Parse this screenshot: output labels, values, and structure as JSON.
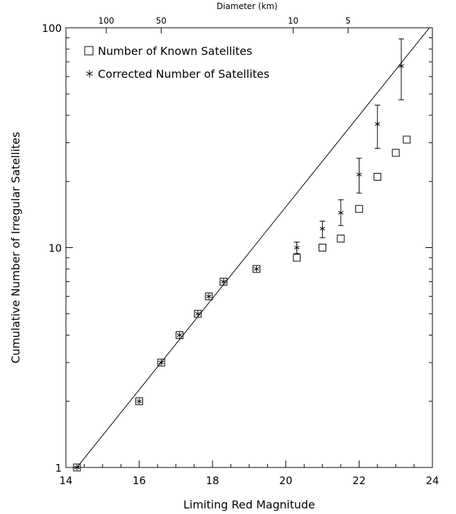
{
  "chart_data": {
    "type": "scatter",
    "title": "",
    "xlabel": "Limiting Red Magnitude",
    "ylabel": "Cumulative Number of Irregular Satellites",
    "x2label": "Diameter (km)",
    "xlim": [
      14,
      24
    ],
    "ylim": [
      1,
      100
    ],
    "yscale": "log",
    "grid": false,
    "legend_position": "top-left",
    "x_ticks": [
      "14",
      "16",
      "18",
      "20",
      "22",
      "24"
    ],
    "y_ticks": [
      "1",
      "10",
      "100"
    ],
    "top_ticks": [
      {
        "label": "100",
        "x": 15.1
      },
      {
        "label": "50",
        "x": 16.6
      },
      {
        "label": "10",
        "x": 20.2
      },
      {
        "label": "5",
        "x": 21.7
      }
    ],
    "series": [
      {
        "name": "Number of Known Satellites",
        "marker": "square",
        "x": [
          14.3,
          16.0,
          16.6,
          17.1,
          17.6,
          17.9,
          18.3,
          19.2,
          20.3,
          21.0,
          21.5,
          22.0,
          22.5,
          23.0,
          23.3
        ],
        "y": [
          1,
          2,
          3,
          4,
          5,
          6,
          7,
          8,
          9,
          10,
          11,
          15,
          21,
          27,
          31
        ]
      },
      {
        "name": "Corrected Number of Satellites",
        "marker": "asterisk",
        "x": [
          14.3,
          16.0,
          16.6,
          17.1,
          17.6,
          17.9,
          18.3,
          19.2,
          20.3,
          21.0,
          21.5,
          22.0,
          22.5,
          23.15
        ],
        "y": [
          1,
          2,
          3,
          4,
          5,
          6,
          7,
          8,
          10,
          12.2,
          14.4,
          21.5,
          36.5,
          67
        ],
        "err_low": [
          null,
          null,
          null,
          null,
          null,
          null,
          null,
          null,
          9.4,
          11.1,
          12.6,
          17.7,
          28.3,
          47
        ],
        "err_high": [
          null,
          null,
          null,
          null,
          null,
          null,
          null,
          null,
          10.6,
          13.2,
          16.5,
          25.5,
          44.5,
          89
        ]
      }
    ],
    "fit_line": {
      "x": [
        14.3,
        24
      ],
      "y": [
        1,
        104
      ]
    }
  }
}
